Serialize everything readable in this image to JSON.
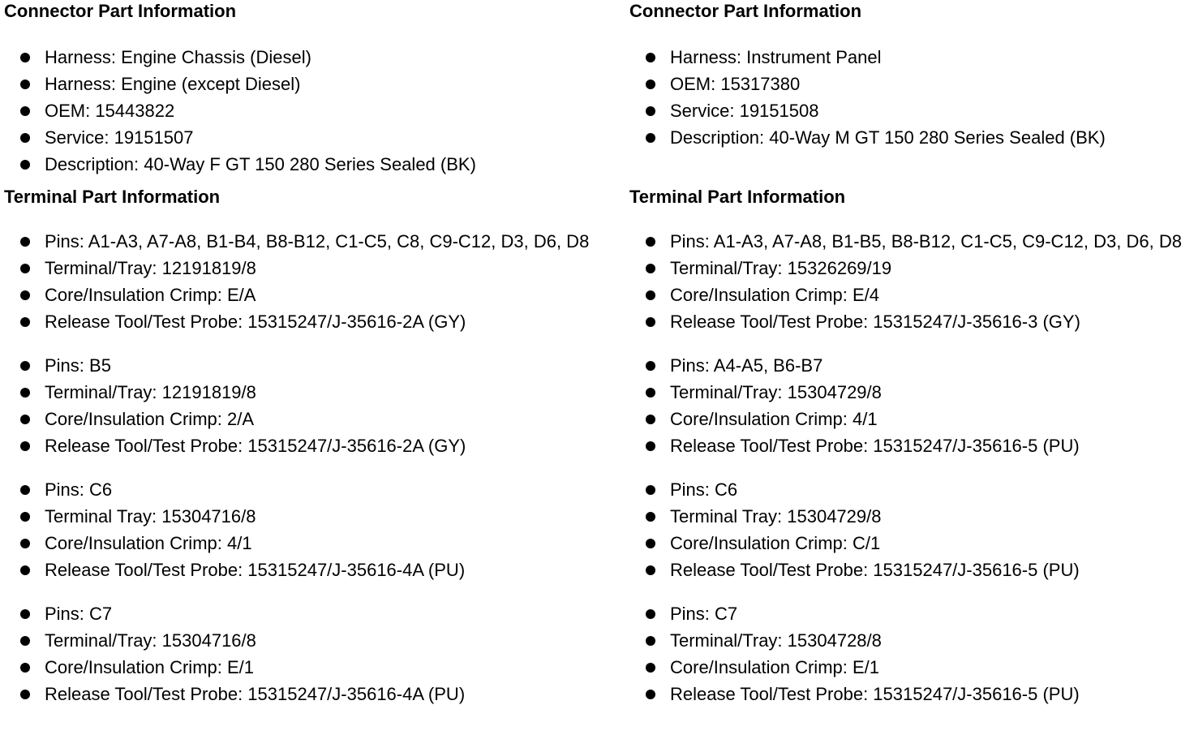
{
  "left": {
    "connector_heading": "Connector Part Information",
    "connector_items": [
      "Harness: Engine Chassis (Diesel)",
      "Harness: Engine (except Diesel)",
      "OEM: 15443822",
      "Service: 19151507",
      "Description: 40-Way F GT 150 280 Series Sealed (BK)"
    ],
    "terminal_heading": "Terminal Part Information",
    "groups": [
      [
        "Pins: A1-A3, A7-A8, B1-B4, B8-B12, C1-C5, C8, C9-C12, D3, D6, D8",
        "Terminal/Tray: 12191819/8",
        "Core/Insulation Crimp: E/A",
        "Release Tool/Test Probe: 15315247/J-35616-2A (GY)"
      ],
      [
        "Pins: B5",
        "Terminal/Tray: 12191819/8",
        "Core/Insulation Crimp: 2/A",
        "Release Tool/Test Probe: 15315247/J-35616-2A (GY)"
      ],
      [
        "Pins: C6",
        "Terminal Tray: 15304716/8",
        "Core/Insulation Crimp: 4/1",
        "Release Tool/Test Probe: 15315247/J-35616-4A (PU)"
      ],
      [
        "Pins: C7",
        "Terminal/Tray: 15304716/8",
        "Core/Insulation Crimp: E/1",
        "Release Tool/Test Probe: 15315247/J-35616-4A (PU)"
      ]
    ]
  },
  "right": {
    "connector_heading": "Connector Part Information",
    "connector_items": [
      "Harness: Instrument Panel",
      "OEM: 15317380",
      "Service: 19151508",
      "Description: 40-Way M GT 150 280 Series Sealed (BK)"
    ],
    "terminal_heading": "Terminal Part Information",
    "groups": [
      [
        "Pins: A1-A3, A7-A8, B1-B5, B8-B12, C1-C5, C9-C12, D3, D6, D8",
        "Terminal/Tray: 15326269/19",
        "Core/Insulation Crimp: E/4",
        "Release Tool/Test Probe: 15315247/J-35616-3 (GY)"
      ],
      [
        "Pins: A4-A5, B6-B7",
        "Terminal/Tray: 15304729/8",
        "Core/Insulation Crimp: 4/1",
        "Release Tool/Test Probe: 15315247/J-35616-5 (PU)"
      ],
      [
        "Pins: C6",
        "Terminal Tray: 15304729/8",
        "Core/Insulation Crimp: C/1",
        "Release Tool/Test Probe: 15315247/J-35616-5 (PU)"
      ],
      [
        "Pins: C7",
        "Terminal/Tray: 15304728/8",
        "Core/Insulation Crimp: E/1",
        "Release Tool/Test Probe: 15315247/J-35616-5 (PU)"
      ]
    ]
  }
}
